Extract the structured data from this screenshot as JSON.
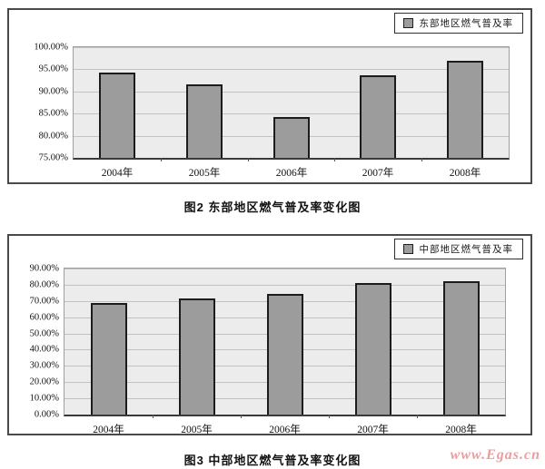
{
  "chart_data": [
    {
      "type": "bar",
      "title": "图2 东部地区燃气普及率变化图",
      "legend": [
        "东部地区燃气普及率"
      ],
      "legend_position": "top-right",
      "categories": [
        "2004年",
        "2005年",
        "2006年",
        "2007年",
        "2008年"
      ],
      "values": [
        94.3,
        91.5,
        84.2,
        93.6,
        97.0
      ],
      "ylim": [
        75,
        100
      ],
      "ytick_step": 5,
      "yticks": [
        "100.00%",
        "95.00%",
        "90.00%",
        "85.00%",
        "80.00%",
        "75.00%"
      ],
      "grid": true,
      "xlabel": "",
      "ylabel": "",
      "bar_color": "#9c9c9c",
      "bar_border_color": "#1c1c1c",
      "plot_bg_color": "#ececec"
    },
    {
      "type": "bar",
      "title": "图3 中部地区燃气普及率变化图",
      "legend": [
        "中部地区燃气普及率"
      ],
      "legend_position": "top-right",
      "categories": [
        "2004年",
        "2005年",
        "2006年",
        "2007年",
        "2008年"
      ],
      "values": [
        68.5,
        71.3,
        74.6,
        80.9,
        81.9
      ],
      "ylim": [
        0,
        90
      ],
      "ytick_step": 10,
      "yticks": [
        "90.00%",
        "80.00%",
        "70.00%",
        "60.00%",
        "50.00%",
        "40.00%",
        "30.00%",
        "20.00%",
        "10.00%",
        "0.00%"
      ],
      "grid": true,
      "xlabel": "",
      "ylabel": "",
      "bar_color": "#9c9c9c",
      "bar_border_color": "#1c1c1c",
      "plot_bg_color": "#ececec"
    }
  ],
  "watermark": {
    "text": "www.Egas.cn",
    "color": "#ee9c9c"
  }
}
